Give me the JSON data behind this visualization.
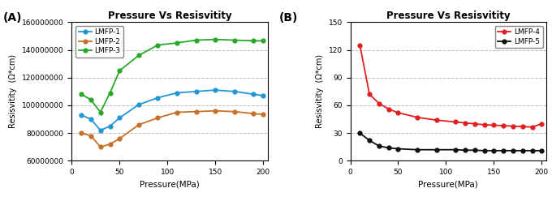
{
  "title_A": "Pressure Vs Resisvitity",
  "title_B": "Pressure Vs Resisvitity",
  "xlabel": "Pressure(MPa)",
  "ylabel_A": "Resisvitity  (Ω*cm)",
  "ylabel_B": "Resisvitity  (Ω*cm)",
  "label_A": "(A)",
  "label_B": "(B)",
  "pressure_A": [
    10,
    20,
    30,
    40,
    50,
    70,
    90,
    110,
    130,
    150,
    170,
    190,
    200
  ],
  "LMFP1": [
    93000000,
    90000000,
    82000000,
    85000000,
    91000000,
    100500000,
    105500000,
    109000000,
    110000000,
    111000000,
    110000000,
    108000000,
    107000000
  ],
  "LMFP2": [
    80000000,
    78000000,
    70000000,
    72000000,
    76000000,
    86000000,
    91000000,
    95000000,
    95500000,
    96000000,
    95500000,
    94000000,
    93500000
  ],
  "LMFP3": [
    108000000,
    104000000,
    95000000,
    109000000,
    125000000,
    136000000,
    143500000,
    145000000,
    147000000,
    147500000,
    147000000,
    146500000,
    146500000
  ],
  "pressure_B": [
    10,
    20,
    30,
    40,
    50,
    70,
    90,
    110,
    120,
    130,
    140,
    150,
    160,
    170,
    180,
    190,
    200
  ],
  "LMFP4": [
    125,
    72,
    62,
    56,
    52,
    47,
    44,
    42,
    41,
    40,
    39,
    38.5,
    38,
    37.5,
    37,
    36.5,
    40
  ],
  "LMFP5": [
    30,
    22,
    16,
    14,
    13,
    12,
    12,
    12,
    11.5,
    11.5,
    11,
    11,
    11,
    11,
    11,
    11,
    11
  ],
  "color_1": "#2196d3",
  "color_2": "#c87028",
  "color_3": "#28a828",
  "color_4": "#e02020",
  "color_5": "#101010",
  "ylim_A": [
    60000000,
    160000000
  ],
  "yticks_A": [
    60000000,
    80000000,
    100000000,
    120000000,
    140000000,
    160000000
  ],
  "xlim_A": [
    0,
    205
  ],
  "xticks_A": [
    0,
    50,
    100,
    150,
    200
  ],
  "ylim_B": [
    0,
    150
  ],
  "yticks_B": [
    0,
    30,
    60,
    90,
    120,
    150
  ],
  "xlim_B": [
    0,
    205
  ],
  "xticks_B": [
    0,
    50,
    100,
    150,
    200
  ]
}
